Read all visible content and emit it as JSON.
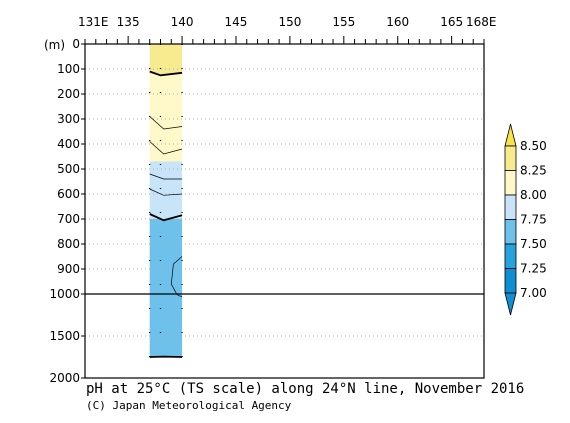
{
  "chart_data": {
    "type": "contour-section",
    "title": "pH at 25°C (TS scale) along 24°N line, November 2016",
    "credit": "(C) Japan Meteorological Agency",
    "x_axis": {
      "unit_start": "131E",
      "unit_end": "168E",
      "range": [
        131,
        168
      ],
      "ticks": [
        135,
        140,
        145,
        150,
        155,
        160,
        165
      ],
      "tick_labels": [
        "135",
        "140",
        "145",
        "150",
        "155",
        "160",
        "165"
      ]
    },
    "y_axis": {
      "unit": "(m)",
      "upper_ticks": [
        0,
        100,
        200,
        300,
        400,
        500,
        600,
        700,
        800,
        900,
        1000
      ],
      "lower_ticks": [
        1500,
        2000
      ],
      "upper_range": [
        0,
        1000
      ],
      "lower_range": [
        1000,
        2000
      ],
      "reference_line": 1000
    },
    "data_extent_lon": [
      137,
      140
    ],
    "station_lons": [
      137,
      138,
      140
    ],
    "bands": [
      {
        "from_depth": 0,
        "to_depth": 120,
        "ph_range": "8.25-8.50",
        "color": "#f8ea8e"
      },
      {
        "from_depth": 120,
        "to_depth": 470,
        "ph_range": "8.00-8.25",
        "color": "#fff8c8"
      },
      {
        "from_depth": 470,
        "to_depth": 700,
        "ph_range": "7.75-8.00",
        "color": "#c8e4f8"
      },
      {
        "from_depth": 700,
        "to_depth": 1750,
        "ph_range": "7.50-7.75",
        "color": "#6ec1ea"
      }
    ],
    "contours": [
      {
        "level": 8.25,
        "bold": true,
        "points": [
          [
            137,
            110
          ],
          [
            138,
            125
          ],
          [
            140,
            115
          ]
        ]
      },
      {
        "level": 8.2,
        "bold": false,
        "points": [
          [
            137,
            290
          ],
          [
            138.3,
            340
          ],
          [
            140,
            330
          ]
        ]
      },
      {
        "level": 8.1,
        "bold": false,
        "points": [
          [
            137,
            390
          ],
          [
            138.3,
            440
          ],
          [
            140,
            420
          ]
        ]
      },
      {
        "level": 7.95,
        "bold": false,
        "points": [
          [
            137,
            520
          ],
          [
            138.3,
            540
          ],
          [
            140,
            540
          ]
        ]
      },
      {
        "level": 7.85,
        "bold": false,
        "points": [
          [
            137,
            580
          ],
          [
            138.3,
            605
          ],
          [
            140,
            600
          ]
        ]
      },
      {
        "level": 7.75,
        "bold": true,
        "points": [
          [
            137,
            680
          ],
          [
            138.3,
            705
          ],
          [
            140,
            685
          ]
        ]
      },
      {
        "level": 7.6,
        "bold": false,
        "points": [
          [
            140,
            850
          ],
          [
            139.2,
            880
          ],
          [
            139.0,
            960
          ],
          [
            139.5,
            1000
          ],
          [
            139.7,
            1020
          ],
          [
            140,
            1030
          ]
        ]
      },
      {
        "level": 7.5,
        "bold": true,
        "points": [
          [
            137,
            1750
          ],
          [
            138.3,
            1745
          ],
          [
            140,
            1750
          ]
        ]
      }
    ],
    "colorbar": {
      "levels": [
        "8.50",
        "8.25",
        "8.00",
        "7.75",
        "7.50",
        "7.25",
        "7.00"
      ],
      "colors": [
        "#f6e24a",
        "#f8ea8e",
        "#fff8c8",
        "#c8e4f8",
        "#6ec1ea",
        "#26a2dd",
        "#0f8fd2"
      ]
    }
  }
}
